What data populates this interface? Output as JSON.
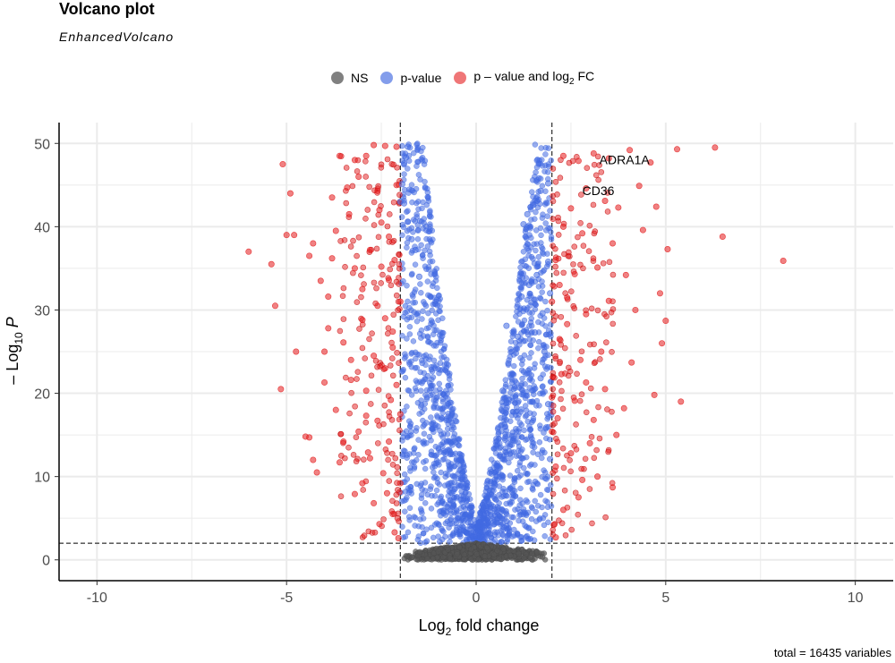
{
  "chart_data": {
    "type": "scatter",
    "title": "Volcano plot",
    "subtitle": "EnhancedVolcano",
    "xlabel": "Log",
    "xlabel_sub": "2",
    "xlabel_suffix": " fold change",
    "ylabel_prefix": "– Log",
    "ylabel_sub": "10",
    "ylabel_suffix": " P",
    "xlim": [
      -11,
      11
    ],
    "ylim": [
      -2.5,
      52.5
    ],
    "x_ticks": [
      -10,
      -5,
      0,
      5,
      10
    ],
    "x_tick_labels": [
      "-10",
      "-5",
      "0",
      "5",
      "10"
    ],
    "y_ticks": [
      0,
      10,
      20,
      30,
      40,
      50
    ],
    "y_tick_labels": [
      "0",
      "10",
      "20",
      "30",
      "40",
      "50"
    ],
    "grid": true,
    "legend_position": "top",
    "fc_cutoff": 2,
    "p_cutoff": 2,
    "caption": "total = 16435 variables",
    "legend": [
      {
        "key": "NS",
        "label": "NS",
        "color": "#555555"
      },
      {
        "key": "p",
        "label": "p-value",
        "color": "#4169E1"
      },
      {
        "key": "pfc",
        "label_prefix": "p – value and log",
        "label_sub": "2",
        "label_suffix": " FC",
        "color": "#E41A1C"
      }
    ],
    "labels": [
      {
        "text": "ADRA1A",
        "x": 3.25,
        "y": 47.5
      },
      {
        "text": "CD36",
        "x": 2.8,
        "y": 43.8
      }
    ],
    "series": [
      {
        "key": "pfc",
        "name": "p – value and log2 FC",
        "points": [
          [
            -6.0,
            37.0
          ],
          [
            -5.4,
            35.5
          ],
          [
            -5.3,
            30.5
          ],
          [
            -5.15,
            20.5
          ],
          [
            -5.1,
            47.5
          ],
          [
            -5.0,
            39.0
          ],
          [
            -4.9,
            44.0
          ],
          [
            -4.8,
            39.0
          ],
          [
            -4.75,
            25.0
          ],
          [
            -4.5,
            14.8
          ],
          [
            -4.4,
            14.7
          ],
          [
            -4.3,
            12.0
          ],
          [
            -4.2,
            10.5
          ],
          [
            -4.0,
            25.0
          ],
          [
            -4.1,
            33.5
          ],
          [
            -4.3,
            38.0
          ],
          [
            -4.4,
            36.5
          ],
          [
            -3.8,
            43.5
          ],
          [
            -3.6,
            48.5
          ],
          [
            -3.2,
            48.0
          ],
          [
            -2.9,
            48.5
          ],
          [
            -2.7,
            49.8
          ],
          [
            -2.4,
            49.7
          ],
          [
            -2.1,
            49.6
          ],
          [
            -3.1,
            46.0
          ],
          [
            -2.6,
            44.3
          ],
          [
            -3.35,
            41.5
          ],
          [
            -2.5,
            40.5
          ],
          [
            -3.7,
            39.5
          ],
          [
            -2.8,
            37.2
          ],
          [
            -3.2,
            35.0
          ],
          [
            -2.3,
            33.6
          ],
          [
            -3.9,
            31.6
          ],
          [
            -2.6,
            30.5
          ],
          [
            -3.0,
            28.8
          ],
          [
            -2.2,
            27.4
          ],
          [
            -3.5,
            26.1
          ],
          [
            -2.7,
            24.5
          ],
          [
            -2.4,
            23.0
          ],
          [
            -3.3,
            21.6
          ],
          [
            -2.9,
            20.3
          ],
          [
            -2.25,
            19.2
          ],
          [
            -3.7,
            18.0
          ],
          [
            -2.6,
            16.7
          ],
          [
            -3.1,
            15.4
          ],
          [
            -2.3,
            14.2
          ],
          [
            -2.85,
            12.9
          ],
          [
            -3.6,
            11.7
          ],
          [
            -2.45,
            10.4
          ],
          [
            -3.0,
            9.2
          ],
          [
            -2.35,
            8.0
          ],
          [
            -2.7,
            6.8
          ],
          [
            -2.2,
            5.5
          ],
          [
            -2.55,
            4.3
          ],
          [
            -2.15,
            3.3
          ],
          [
            -2.05,
            2.6
          ],
          [
            -2.1,
            21.0
          ],
          [
            -2.2,
            25.5
          ],
          [
            -2.4,
            29.0
          ],
          [
            -2.15,
            36.0
          ],
          [
            -2.3,
            38.8
          ],
          [
            -2.55,
            42.0
          ],
          [
            -2.1,
            45.0
          ],
          [
            -3.4,
            44.7
          ],
          [
            -3.8,
            36.2
          ],
          [
            -3.9,
            27.8
          ],
          [
            -4.0,
            21.3
          ],
          [
            -3.5,
            14.2
          ],
          [
            -3.2,
            7.9
          ],
          [
            -2.8,
            12.2
          ],
          [
            -2.9,
            17.3
          ],
          [
            -3.3,
            24.0
          ],
          [
            -3.0,
            32.5
          ],
          [
            -2.5,
            35.2
          ],
          [
            -2.0,
            31.0
          ],
          [
            -2.0,
            17.5
          ],
          [
            -2.0,
            9.2
          ],
          [
            6.3,
            49.5
          ],
          [
            5.3,
            49.3
          ],
          [
            4.05,
            49.2
          ],
          [
            3.5,
            48.2
          ],
          [
            4.6,
            47.7
          ],
          [
            3.1,
            48.8
          ],
          [
            2.7,
            47.9
          ],
          [
            2.3,
            48.5
          ],
          [
            4.3,
            44.9
          ],
          [
            4.75,
            42.4
          ],
          [
            3.75,
            42.3
          ],
          [
            3.4,
            43.1
          ],
          [
            2.9,
            44.6
          ],
          [
            2.5,
            42.2
          ],
          [
            6.5,
            38.8
          ],
          [
            8.1,
            35.9
          ],
          [
            5.05,
            37.3
          ],
          [
            4.4,
            39.6
          ],
          [
            3.6,
            38.0
          ],
          [
            2.8,
            39.2
          ],
          [
            2.3,
            40.0
          ],
          [
            4.85,
            32.0
          ],
          [
            3.95,
            34.2
          ],
          [
            3.2,
            35.1
          ],
          [
            2.6,
            34.3
          ],
          [
            2.2,
            33.0
          ],
          [
            5.0,
            28.7
          ],
          [
            4.2,
            30.0
          ],
          [
            3.5,
            31.1
          ],
          [
            2.9,
            29.5
          ],
          [
            2.4,
            28.3
          ],
          [
            5.4,
            19.0
          ],
          [
            4.9,
            26.0
          ],
          [
            4.1,
            23.7
          ],
          [
            3.3,
            25.0
          ],
          [
            2.75,
            24.0
          ],
          [
            2.25,
            22.3
          ],
          [
            4.7,
            19.8
          ],
          [
            3.9,
            18.2
          ],
          [
            3.4,
            20.5
          ],
          [
            2.6,
            19.1
          ],
          [
            2.15,
            17.0
          ],
          [
            3.7,
            15.0
          ],
          [
            3.0,
            14.0
          ],
          [
            2.5,
            12.8
          ],
          [
            2.1,
            11.2
          ],
          [
            3.6,
            8.7
          ],
          [
            3.2,
            10.0
          ],
          [
            2.7,
            7.5
          ],
          [
            2.3,
            6.0
          ],
          [
            2.05,
            4.2
          ],
          [
            2.1,
            2.7
          ],
          [
            2.2,
            26.5
          ],
          [
            2.1,
            36.0
          ],
          [
            2.4,
            31.5
          ],
          [
            2.9,
            21.3
          ],
          [
            3.1,
            16.8
          ],
          [
            2.8,
            9.6
          ],
          [
            2.0,
            19.5
          ],
          [
            2.0,
            31.0
          ],
          [
            2.0,
            15.4
          ]
        ]
      },
      {
        "key": "p",
        "name": "p-value",
        "points": [
          [
            -1.8,
            49.6
          ],
          [
            -1.85,
            48.3
          ],
          [
            -1.9,
            47.6
          ],
          [
            -1.95,
            45.1
          ],
          [
            -2.0,
            43.0
          ],
          [
            -1.9,
            42.8
          ],
          [
            -1.8,
            40.6
          ],
          [
            -1.7,
            38.5
          ],
          [
            -1.6,
            37.2
          ],
          [
            -1.5,
            34.0
          ],
          [
            1.9,
            45.2
          ],
          [
            1.7,
            44.3
          ],
          [
            1.5,
            42.6
          ],
          [
            1.35,
            41.5
          ],
          [
            1.25,
            40.3
          ],
          [
            1.9,
            35.8
          ],
          [
            1.6,
            34.2
          ],
          [
            1.4,
            33.0
          ],
          [
            1.95,
            32.0
          ],
          [
            1.75,
            29.6
          ],
          [
            1.55,
            27.3
          ],
          [
            1.8,
            25.0
          ],
          [
            1.7,
            21.8
          ],
          [
            1.9,
            18.7
          ],
          [
            1.85,
            15.9
          ],
          [
            1.95,
            12.1
          ],
          [
            0.7,
            20.3
          ],
          [
            0.85,
            23.6
          ],
          [
            0.8,
            28.1
          ],
          [
            1.1,
            26.8
          ],
          [
            1.2,
            31.6
          ]
        ]
      }
    ]
  }
}
